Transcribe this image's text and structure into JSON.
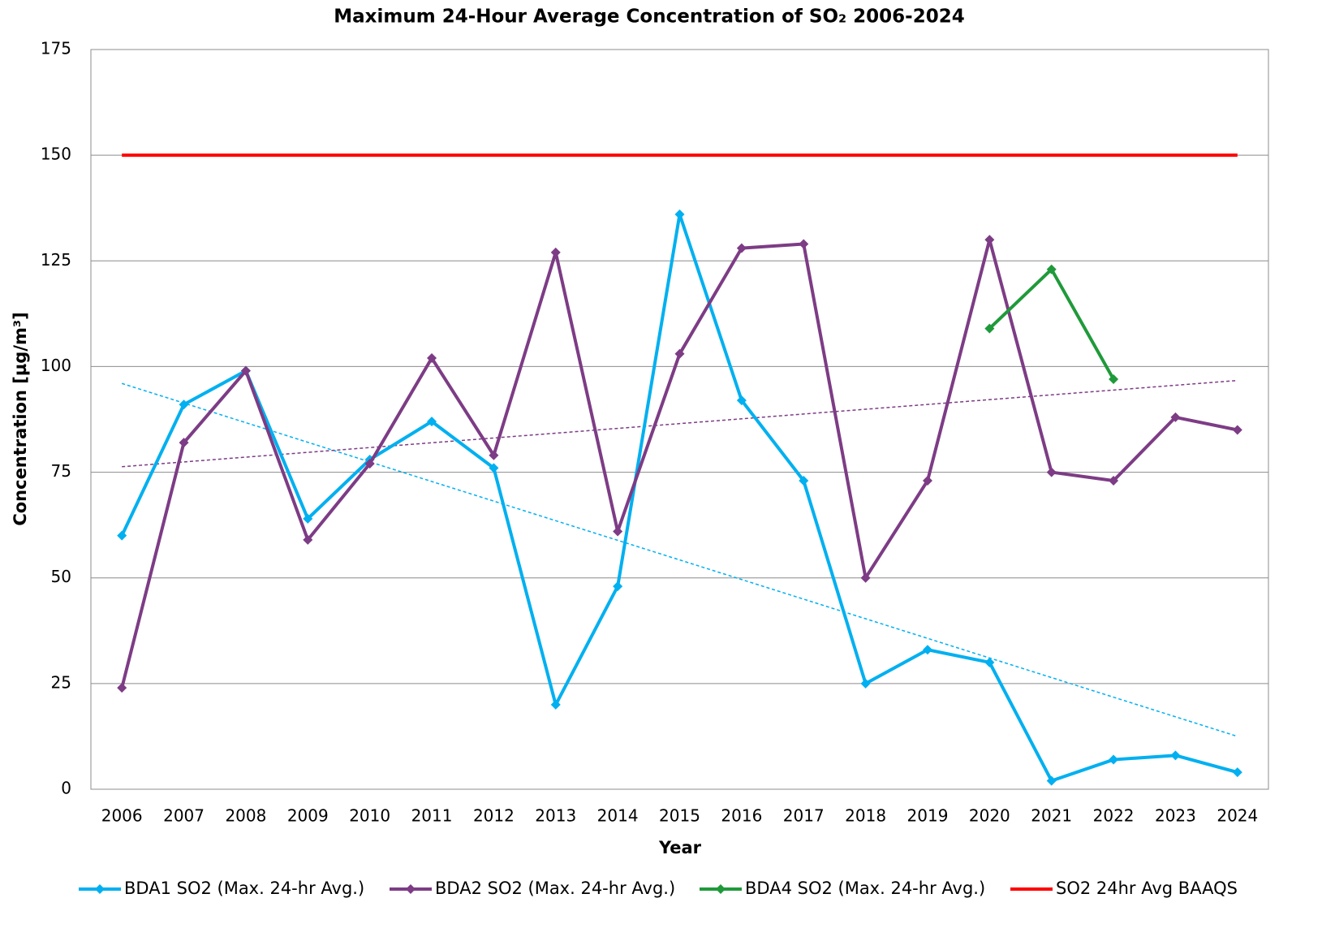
{
  "chart_data": {
    "type": "line",
    "title": "Maximum 24-Hour Average Concentration of SO₂ 2006-2024",
    "x_label": "Year",
    "y_label": "Concentration [µg/m³]",
    "categories": [
      "2006",
      "2007",
      "2008",
      "2009",
      "2010",
      "2011",
      "2012",
      "2013",
      "2014",
      "2015",
      "2016",
      "2017",
      "2018",
      "2019",
      "2020",
      "2021",
      "2022",
      "2023",
      "2024"
    ],
    "ylim": [
      0,
      175
    ],
    "yticks": [
      0,
      25,
      50,
      75,
      100,
      125,
      150,
      175
    ],
    "grid": true,
    "legend": "bottom",
    "series": [
      {
        "name": "BDA1 SO2 (Max. 24-hr Avg.)",
        "color": "#00b0f0",
        "marker": "diamond",
        "values": [
          60,
          91,
          99,
          64,
          78,
          87,
          76,
          20,
          48,
          136,
          92,
          73,
          25,
          33,
          30,
          2,
          7,
          8,
          4
        ],
        "trendline": [
          96,
          12.5
        ]
      },
      {
        "name": "BDA2 SO2 (Max. 24-hr Avg.)",
        "color": "#7d3c85",
        "marker": "diamond",
        "values": [
          24,
          82,
          99,
          59,
          77,
          102,
          79,
          127,
          61,
          103,
          128,
          129,
          50,
          73,
          130,
          75,
          73,
          88,
          85
        ],
        "trendline": [
          76.3,
          96.7
        ]
      },
      {
        "name": "BDA4 SO2 (Max. 24-hr Avg.)",
        "color": "#1f9a3a",
        "marker": "diamond",
        "values": [
          null,
          null,
          null,
          null,
          null,
          null,
          null,
          null,
          null,
          null,
          null,
          null,
          null,
          null,
          109,
          123,
          97,
          null,
          null
        ]
      },
      {
        "name": "SO2 24hr Avg BAAQS",
        "color": "#ff0000",
        "marker": "none",
        "values": [
          150,
          150,
          150,
          150,
          150,
          150,
          150,
          150,
          150,
          150,
          150,
          150,
          150,
          150,
          150,
          150,
          150,
          150,
          150
        ]
      }
    ]
  }
}
